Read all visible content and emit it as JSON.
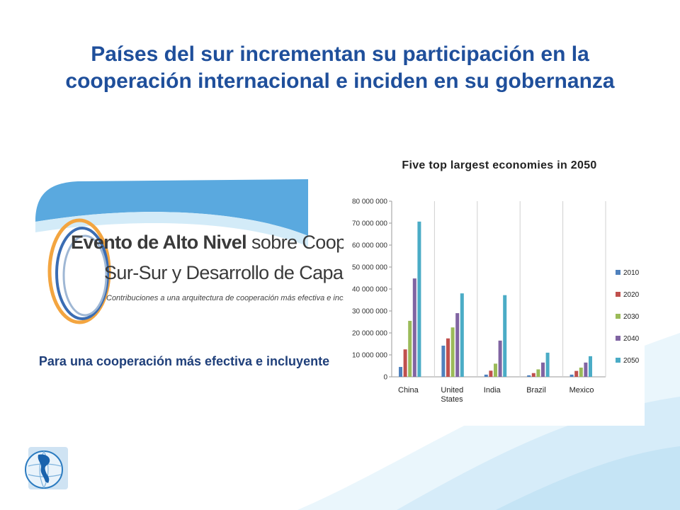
{
  "slide": {
    "title": "Países del sur  incrementan su participación en la cooperación internacional e inciden en su gobernanza",
    "caption": "Para una cooperación más efectiva e incluyente",
    "banner": {
      "line1_bold": "Evento de Alto Nivel",
      "line1_rest": " sobre Cooperación",
      "line2": "Sur-Sur y Desarrollo de Capacidades",
      "line3": "Contribuciones a una arquitectura de cooperación más efectiva e incluyente"
    },
    "colors": {
      "title": "#1f4f9b",
      "caption": "#1f3f7a",
      "accent_light": "#cfe9f7"
    },
    "logo_icon": "globe-americas-icon"
  },
  "chart_data": {
    "type": "bar",
    "title": "Five top largest economies in 2050",
    "categories": [
      "China",
      "United States",
      "India",
      "Brazil",
      "Mexico"
    ],
    "series": [
      {
        "name": "2010",
        "color": "#4f81bd",
        "values": [
          4500000,
          14200000,
          1000000,
          700000,
          1000000
        ]
      },
      {
        "name": "2020",
        "color": "#c0504d",
        "values": [
          12500000,
          17500000,
          2800000,
          1700000,
          2700000
        ]
      },
      {
        "name": "2030",
        "color": "#9bbb59",
        "values": [
          25500000,
          22500000,
          6000000,
          3400000,
          4200000
        ]
      },
      {
        "name": "2040",
        "color": "#8064a2",
        "values": [
          44800000,
          29000000,
          16500000,
          6500000,
          6500000
        ]
      },
      {
        "name": "2050",
        "color": "#4bacc6",
        "values": [
          70700000,
          38000000,
          37200000,
          11000000,
          9400000
        ]
      }
    ],
    "ylim": [
      0,
      80000000
    ],
    "yticks": [
      "0",
      "10 000 000",
      "20 000 000",
      "30 000 000",
      "40 000 000",
      "50 000 000",
      "60 000 000",
      "70 000 000",
      "80 000 000"
    ],
    "grid": "vertical",
    "legend": "right"
  }
}
